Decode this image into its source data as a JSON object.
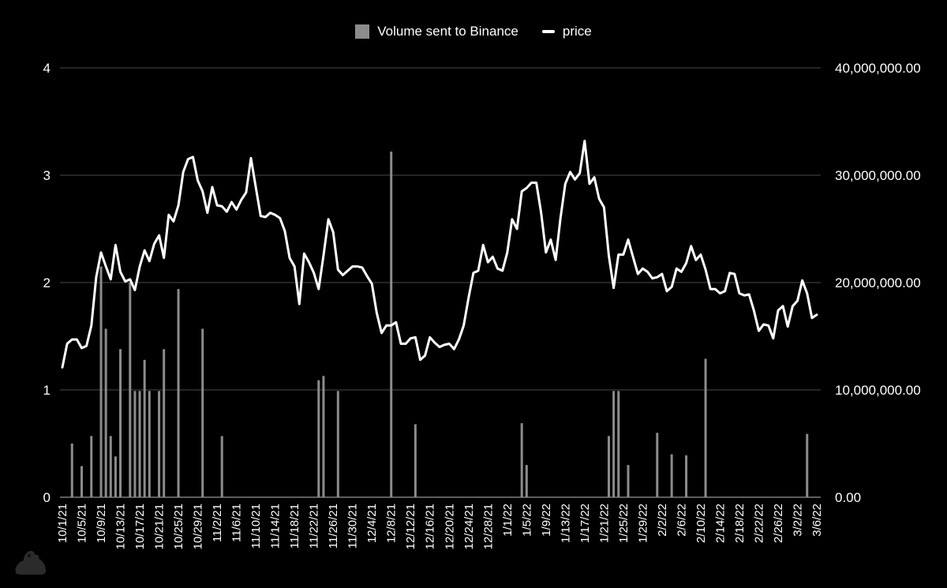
{
  "chart_data": {
    "type": "bar+line",
    "title": "",
    "legend": {
      "position": "top-center",
      "entries": [
        "Volume sent to Binance",
        "price"
      ]
    },
    "colors": {
      "background": "#000000",
      "bar": "#8c8c8c",
      "line": "#ffffff",
      "grid": "#4a4a4a",
      "text": "#ffffff"
    },
    "x_tick_labels": [
      "10/1/21",
      "10/5/21",
      "10/9/21",
      "10/13/21",
      "10/17/21",
      "10/21/21",
      "10/25/21",
      "10/29/21",
      "11/2/21",
      "11/6/21",
      "11/10/21",
      "11/14/21",
      "11/18/21",
      "11/22/21",
      "11/26/21",
      "11/30/21",
      "12/4/21",
      "12/8/21",
      "12/12/21",
      "12/16/21",
      "12/20/21",
      "12/24/21",
      "12/28/21",
      "1/1/22",
      "1/5/22",
      "1/9/22",
      "1/13/22",
      "1/17/22",
      "1/21/22",
      "1/25/22",
      "1/29/22",
      "2/2/22",
      "2/6/22",
      "2/10/22",
      "2/14/22",
      "2/18/22",
      "2/22/22",
      "2/26/22",
      "3/2/22",
      "3/6/22"
    ],
    "start_date": "10/1/21",
    "num_days": 157,
    "left_axis": {
      "ylim": [
        0,
        4
      ],
      "ticks": [
        "0",
        "1",
        "2",
        "3",
        "4"
      ],
      "series": "price"
    },
    "right_axis": {
      "ylim": [
        0,
        40000000
      ],
      "ticks": [
        "0.00",
        "10,000,000.00",
        "20,000,000.00",
        "30,000,000.00",
        "40,000,000.00"
      ],
      "series": "Volume sent to Binance"
    },
    "series": [
      {
        "name": "Volume sent to Binance",
        "type": "bar",
        "axis": "right",
        "points": [
          [
            2,
            5000000
          ],
          [
            4,
            2900000
          ],
          [
            6,
            5700000
          ],
          [
            8,
            21500000
          ],
          [
            9,
            15700000
          ],
          [
            10,
            5700000
          ],
          [
            11,
            3800000
          ],
          [
            12,
            13800000
          ],
          [
            14,
            20000000
          ],
          [
            15,
            9900000
          ],
          [
            16,
            9900000
          ],
          [
            17,
            12800000
          ],
          [
            18,
            9900000
          ],
          [
            20,
            9900000
          ],
          [
            21,
            13800000
          ],
          [
            24,
            19400000
          ],
          [
            29,
            15700000
          ],
          [
            33,
            5700000
          ],
          [
            53,
            10900000
          ],
          [
            54,
            11300000
          ],
          [
            57,
            9900000
          ],
          [
            68,
            32200000
          ],
          [
            73,
            6800000
          ],
          [
            95,
            6900000
          ],
          [
            96,
            3000000
          ],
          [
            113,
            5700000
          ],
          [
            114,
            9900000
          ],
          [
            115,
            9900000
          ],
          [
            117,
            3000000
          ],
          [
            123,
            6000000
          ],
          [
            126,
            4000000
          ],
          [
            129,
            3900000
          ],
          [
            133,
            12900000
          ],
          [
            154,
            5900000
          ]
        ]
      },
      {
        "name": "price",
        "type": "line",
        "axis": "left",
        "values": [
          1.21,
          1.43,
          1.47,
          1.47,
          1.39,
          1.41,
          1.6,
          2.05,
          2.28,
          2.15,
          2.03,
          2.35,
          2.1,
          2.01,
          2.03,
          1.93,
          2.15,
          2.3,
          2.2,
          2.36,
          2.44,
          2.23,
          2.63,
          2.57,
          2.72,
          3.03,
          3.15,
          3.17,
          2.95,
          2.85,
          2.65,
          2.89,
          2.72,
          2.71,
          2.66,
          2.75,
          2.68,
          2.77,
          2.84,
          3.16,
          2.89,
          2.62,
          2.61,
          2.65,
          2.63,
          2.6,
          2.48,
          2.23,
          2.15,
          1.8,
          2.27,
          2.19,
          2.09,
          1.94,
          2.25,
          2.59,
          2.47,
          2.12,
          2.07,
          2.11,
          2.15,
          2.15,
          2.14,
          2.06,
          1.99,
          1.72,
          1.53,
          1.6,
          1.6,
          1.63,
          1.43,
          1.43,
          1.48,
          1.49,
          1.28,
          1.32,
          1.49,
          1.44,
          1.4,
          1.42,
          1.43,
          1.38,
          1.47,
          1.6,
          1.86,
          2.09,
          2.11,
          2.35,
          2.19,
          2.24,
          2.13,
          2.11,
          2.28,
          2.59,
          2.5,
          2.85,
          2.88,
          2.93,
          2.93,
          2.65,
          2.28,
          2.4,
          2.21,
          2.6,
          2.92,
          3.03,
          2.96,
          3.02,
          3.32,
          2.92,
          2.98,
          2.78,
          2.7,
          2.25,
          1.95,
          2.26,
          2.26,
          2.4,
          2.24,
          2.08,
          2.13,
          2.1,
          2.04,
          2.05,
          2.08,
          1.92,
          1.96,
          2.13,
          2.1,
          2.18,
          2.34,
          2.21,
          2.26,
          2.12,
          1.94,
          1.94,
          1.9,
          1.92,
          2.09,
          2.08,
          1.9,
          1.88,
          1.89,
          1.74,
          1.55,
          1.61,
          1.6,
          1.48,
          1.74,
          1.78,
          1.59,
          1.78,
          1.83,
          2.02,
          1.9,
          1.67,
          1.7
        ]
      }
    ]
  }
}
